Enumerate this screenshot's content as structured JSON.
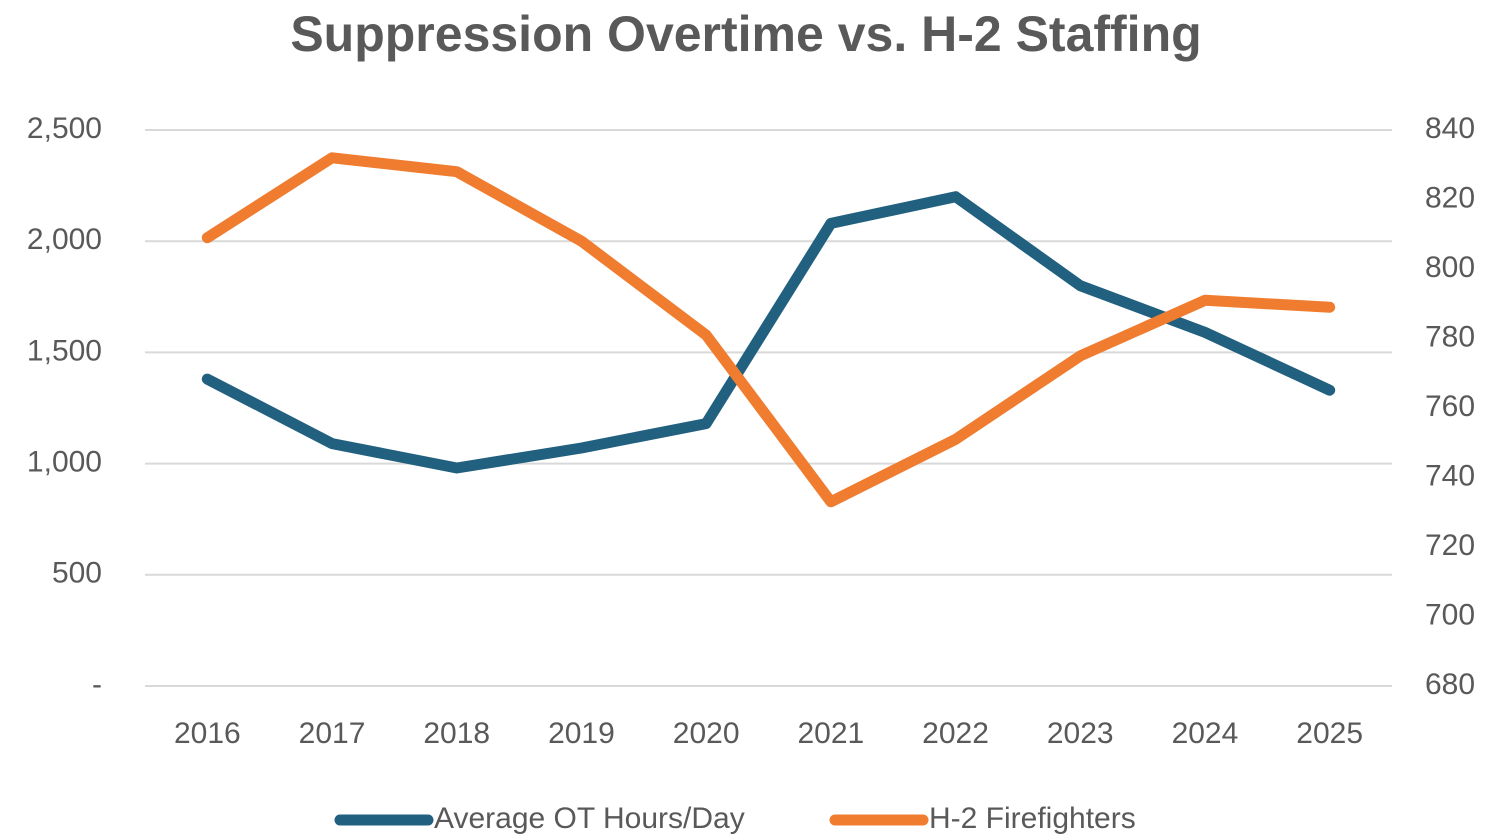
{
  "chart_data": {
    "type": "line",
    "title": "Suppression Overtime vs. H-2 Staffing",
    "categories": [
      "2016",
      "2017",
      "2018",
      "2019",
      "2020",
      "2021",
      "2022",
      "2023",
      "2024",
      "2025"
    ],
    "series": [
      {
        "name": "Average OT Hours/Day",
        "color": "#21607f",
        "values": [
          1380,
          1090,
          980,
          1070,
          1180,
          2080,
          2200,
          1800,
          1590,
          1330
        ]
      },
      {
        "name": "H-2 Firefighters",
        "color": "#f07c30",
        "axis": "y2",
        "values": [
          809,
          832,
          828,
          808,
          781,
          733,
          751,
          775,
          791,
          789
        ]
      }
    ],
    "ylim": [
      0,
      2500
    ],
    "yticks": [
      {
        "value": 0,
        "label": "-"
      },
      500,
      {
        "value": 1000,
        "label": "1,000"
      },
      {
        "value": 1500,
        "label": "1,500"
      },
      {
        "value": 2000,
        "label": "2,000"
      },
      {
        "value": 2500,
        "label": "2,500"
      }
    ],
    "y2lim": [
      680,
      840
    ],
    "y2ticks": [
      680,
      700,
      720,
      740,
      760,
      780,
      800,
      820,
      840
    ],
    "grid": true,
    "legend": "bottom"
  }
}
